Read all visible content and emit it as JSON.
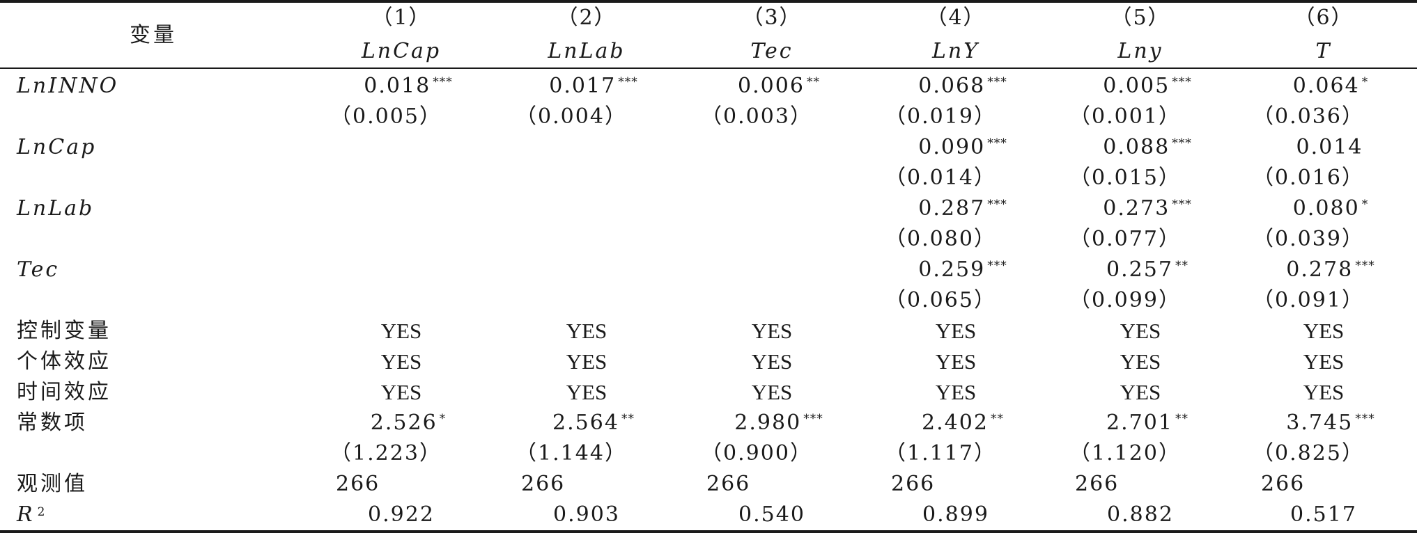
{
  "table": {
    "stub_header": "变量",
    "columns": [
      {
        "number": "（1）",
        "dependent": "LnCap"
      },
      {
        "number": "（2）",
        "dependent": "LnLab"
      },
      {
        "number": "（3）",
        "dependent": "Tec"
      },
      {
        "number": "（4）",
        "dependent": "LnY"
      },
      {
        "number": "（5）",
        "dependent": "Lny"
      },
      {
        "number": "（6）",
        "dependent": "T"
      }
    ],
    "coef_rows": [
      {
        "label": "LnINNO",
        "italic": true,
        "coef": [
          "0.018",
          "0.017",
          "0.006",
          "0.068",
          "0.005",
          "0.064"
        ],
        "stars": [
          "***",
          "***",
          "**",
          "***",
          "***",
          "*"
        ],
        "se": [
          "（0.005）",
          "（0.004）",
          "（0.003）",
          "（0.019）",
          "（0.001）",
          "（0.036）"
        ]
      },
      {
        "label": "LnCap",
        "italic": true,
        "coef": [
          "",
          "",
          "",
          "0.090",
          "0.088",
          "0.014"
        ],
        "stars": [
          "",
          "",
          "",
          "***",
          "***",
          ""
        ],
        "se": [
          "",
          "",
          "",
          "（0.014）",
          "（0.015）",
          "（0.016）"
        ]
      },
      {
        "label": "LnLab",
        "italic": true,
        "coef": [
          "",
          "",
          "",
          "0.287",
          "0.273",
          "0.080"
        ],
        "stars": [
          "",
          "",
          "",
          "***",
          "***",
          "*"
        ],
        "se": [
          "",
          "",
          "",
          "（0.080）",
          "（0.077）",
          "（0.039）"
        ]
      },
      {
        "label": "Tec",
        "italic": true,
        "coef": [
          "",
          "",
          "",
          "0.259",
          "0.257",
          "0.278"
        ],
        "stars": [
          "",
          "",
          "",
          "***",
          "**",
          "***"
        ],
        "se": [
          "",
          "",
          "",
          "（0.065）",
          "（0.099）",
          "（0.091）"
        ]
      }
    ],
    "yes_rows": [
      {
        "label": "控制变量",
        "values": [
          "YES",
          "YES",
          "YES",
          "YES",
          "YES",
          "YES"
        ]
      },
      {
        "label": "个体效应",
        "values": [
          "YES",
          "YES",
          "YES",
          "YES",
          "YES",
          "YES"
        ]
      },
      {
        "label": "时间效应",
        "values": [
          "YES",
          "YES",
          "YES",
          "YES",
          "YES",
          "YES"
        ]
      }
    ],
    "constant_row": {
      "label": "常数项",
      "italic": false,
      "coef": [
        "2.526",
        "2.564",
        "2.980",
        "2.402",
        "2.701",
        "3.745"
      ],
      "stars": [
        "*",
        "**",
        "***",
        "**",
        "**",
        "***"
      ],
      "se": [
        "（1.223）",
        "（1.144）",
        "（0.900）",
        "（1.117）",
        "（1.120）",
        "（0.825）"
      ]
    },
    "observations_row": {
      "label": "观测值",
      "values": [
        "266",
        "266",
        "266",
        "266",
        "266",
        "266"
      ]
    },
    "r2_row": {
      "label": "R",
      "label_sup": "2",
      "values": [
        "0.922",
        "0.903",
        "0.540",
        "0.899",
        "0.882",
        "0.517"
      ]
    }
  }
}
